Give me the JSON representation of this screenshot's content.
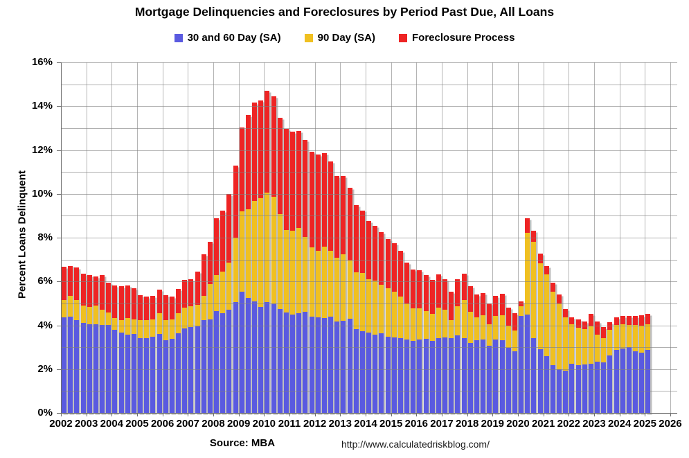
{
  "title": "Mortgage Delinquencies and Foreclosures by Period Past Due, All Loans",
  "footer": {
    "source": "Source: MBA",
    "url": "http://www.calculatedriskblog.com/"
  },
  "chart_data": {
    "type": "bar",
    "stacked": true,
    "title": "Mortgage Delinquencies and Foreclosures by Period Past Due, All Loans",
    "ylabel": "Percent Loans Delinquent",
    "xlabel": "",
    "ylim": [
      0,
      16
    ],
    "ytick_step": 2,
    "minor_grid_step": 1,
    "grid": true,
    "legend_position": "top",
    "y_tick_labels": [
      "0%",
      "2%",
      "4%",
      "6%",
      "8%",
      "10%",
      "12%",
      "14%",
      "16%"
    ],
    "x_tick_labels": [
      "2002",
      "2003",
      "2004",
      "2005",
      "2006",
      "2007",
      "2008",
      "2009",
      "2010",
      "2011",
      "2012",
      "2013",
      "2014",
      "2015",
      "2016",
      "2017",
      "2018",
      "2019",
      "2020",
      "2021",
      "2022",
      "2023",
      "2024",
      "2025",
      "2026"
    ],
    "x_start_year": 2002,
    "quarters_per_year": 4,
    "n_quarters": 93,
    "last_quarter": "2025Q1",
    "series": [
      {
        "name": "30 and 60 Day (SA)",
        "color": "#5a5ae0",
        "values": [
          4.37,
          4.4,
          4.23,
          4.11,
          4.05,
          4.05,
          4.02,
          4.02,
          3.79,
          3.68,
          3.56,
          3.62,
          3.4,
          3.43,
          3.49,
          3.59,
          3.32,
          3.38,
          3.65,
          3.86,
          3.91,
          3.96,
          4.23,
          4.28,
          4.65,
          4.54,
          4.72,
          5.07,
          5.54,
          5.24,
          5.1,
          4.85,
          5.05,
          5.0,
          4.75,
          4.6,
          4.5,
          4.55,
          4.62,
          4.4,
          4.35,
          4.32,
          4.38,
          4.16,
          4.21,
          4.3,
          3.84,
          3.74,
          3.68,
          3.58,
          3.63,
          3.47,
          3.45,
          3.42,
          3.35,
          3.3,
          3.35,
          3.38,
          3.3,
          3.42,
          3.45,
          3.4,
          3.54,
          3.41,
          3.2,
          3.31,
          3.35,
          3.06,
          3.35,
          3.33,
          2.96,
          2.82,
          4.44,
          4.49,
          3.43,
          2.9,
          2.58,
          2.18,
          2.0,
          1.93,
          2.26,
          2.18,
          2.21,
          2.26,
          2.34,
          2.3,
          2.63,
          2.87,
          2.95,
          3.0,
          2.81,
          2.76,
          2.87
        ]
      },
      {
        "name": "90 Day (SA)",
        "color": "#f0c020",
        "values": [
          0.79,
          0.95,
          0.93,
          0.78,
          0.79,
          0.84,
          0.7,
          0.56,
          0.53,
          0.55,
          0.76,
          0.64,
          0.85,
          0.8,
          0.79,
          0.96,
          0.91,
          0.9,
          0.9,
          0.95,
          0.95,
          0.98,
          1.13,
          1.6,
          1.65,
          1.9,
          2.14,
          2.92,
          3.65,
          4.06,
          4.57,
          4.95,
          5.01,
          4.87,
          4.33,
          3.74,
          3.82,
          3.89,
          3.4,
          3.15,
          3.05,
          3.26,
          3.02,
          2.93,
          3.04,
          2.66,
          2.57,
          2.65,
          2.43,
          2.46,
          2.22,
          2.21,
          2.09,
          1.88,
          1.64,
          1.47,
          1.42,
          1.28,
          1.22,
          1.38,
          1.26,
          0.84,
          1.34,
          1.76,
          1.43,
          1.05,
          1.12,
          1.0,
          1.08,
          1.13,
          1.01,
          0.95,
          0.42,
          3.73,
          4.39,
          3.94,
          3.74,
          3.35,
          3.0,
          2.44,
          1.79,
          1.71,
          1.63,
          1.69,
          1.24,
          1.12,
          1.16,
          1.15,
          1.1,
          1.02,
          1.21,
          1.24,
          1.18
        ]
      },
      {
        "name": "Foreclosure Process",
        "color": "#ee2424",
        "values": [
          1.52,
          1.37,
          1.49,
          1.48,
          1.45,
          1.34,
          1.58,
          1.37,
          1.49,
          1.55,
          1.49,
          1.42,
          1.13,
          1.08,
          1.07,
          1.07,
          1.15,
          1.03,
          1.12,
          1.26,
          1.23,
          1.52,
          1.89,
          1.93,
          2.6,
          2.8,
          3.14,
          3.31,
          3.84,
          4.3,
          4.5,
          4.45,
          4.63,
          4.57,
          4.39,
          4.64,
          4.52,
          4.43,
          4.43,
          4.38,
          4.39,
          4.27,
          4.07,
          3.74,
          3.55,
          3.33,
          3.08,
          2.86,
          2.65,
          2.49,
          2.39,
          2.27,
          2.22,
          2.09,
          1.88,
          1.77,
          1.74,
          1.64,
          1.55,
          1.53,
          1.39,
          1.29,
          1.23,
          1.19,
          1.16,
          1.05,
          0.99,
          0.95,
          0.91,
          0.97,
          0.84,
          0.78,
          0.24,
          0.68,
          0.5,
          0.42,
          0.39,
          0.42,
          0.42,
          0.37,
          0.32,
          0.37,
          0.32,
          0.58,
          0.58,
          0.5,
          0.34,
          0.35,
          0.37,
          0.4,
          0.4,
          0.45,
          0.48
        ]
      }
    ],
    "colors": {
      "grid": "#b4b4b4",
      "axis": "#6e6e6e",
      "background": "#ffffff"
    }
  }
}
